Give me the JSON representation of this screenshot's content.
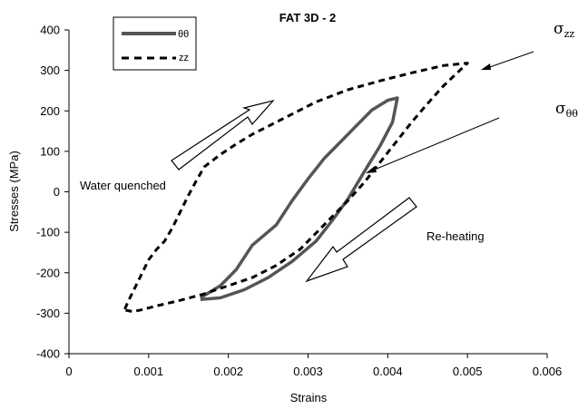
{
  "chart_data": {
    "type": "line",
    "title": "FAT 3D - 2",
    "xlabel": "Strains",
    "ylabel": "Stresses  (MPa)",
    "xlim": [
      0,
      0.006
    ],
    "ylim": [
      -400,
      400
    ],
    "xticks": [
      "0",
      "0.001",
      "0.002",
      "0.003",
      "0.004",
      "0.005",
      "0.006"
    ],
    "yticks": [
      "400",
      "300",
      "200",
      "100",
      "0",
      "-100",
      "-200",
      "-300",
      "-400"
    ],
    "grid": false,
    "legend_position": "top-left",
    "series": [
      {
        "name": "θθ",
        "style": "solid",
        "color": "#555555",
        "points": [
          [
            0.00165,
            -262
          ],
          [
            0.0019,
            -232
          ],
          [
            0.0021,
            -192
          ],
          [
            0.0023,
            -132
          ],
          [
            0.0026,
            -82
          ],
          [
            0.0028,
            -22
          ],
          [
            0.003,
            32
          ],
          [
            0.0032,
            82
          ],
          [
            0.0034,
            122
          ],
          [
            0.0036,
            162
          ],
          [
            0.0038,
            202
          ],
          [
            0.004,
            226
          ],
          [
            0.00412,
            232
          ],
          [
            0.00406,
            172
          ],
          [
            0.0039,
            112
          ],
          [
            0.0037,
            48
          ],
          [
            0.0035,
            -18
          ],
          [
            0.0033,
            -72
          ],
          [
            0.0031,
            -122
          ],
          [
            0.0028,
            -172
          ],
          [
            0.0025,
            -212
          ],
          [
            0.0022,
            -242
          ],
          [
            0.0019,
            -262
          ],
          [
            0.00165,
            -266
          ]
        ]
      },
      {
        "name": "zz",
        "style": "dashed",
        "color": "#000000",
        "points": [
          [
            0.0007,
            -290
          ],
          [
            0.00075,
            -268
          ],
          [
            0.0008,
            -248
          ],
          [
            0.0009,
            -208
          ],
          [
            0.001,
            -168
          ],
          [
            0.0011,
            -142
          ],
          [
            0.0012,
            -122
          ],
          [
            0.0013,
            -88
          ],
          [
            0.0014,
            -48
          ],
          [
            0.0015,
            -8
          ],
          [
            0.0016,
            28
          ],
          [
            0.0017,
            62
          ],
          [
            0.0019,
            92
          ],
          [
            0.0021,
            118
          ],
          [
            0.0023,
            142
          ],
          [
            0.0025,
            162
          ],
          [
            0.0028,
            192
          ],
          [
            0.0031,
            222
          ],
          [
            0.0035,
            252
          ],
          [
            0.0039,
            274
          ],
          [
            0.0043,
            294
          ],
          [
            0.0047,
            312
          ],
          [
            0.005,
            318
          ],
          [
            0.0047,
            262
          ],
          [
            0.0045,
            218
          ],
          [
            0.0043,
            172
          ],
          [
            0.0041,
            122
          ],
          [
            0.0039,
            72
          ],
          [
            0.0037,
            22
          ],
          [
            0.0035,
            -22
          ],
          [
            0.0033,
            -62
          ],
          [
            0.0031,
            -102
          ],
          [
            0.0029,
            -142
          ],
          [
            0.0026,
            -182
          ],
          [
            0.0023,
            -212
          ],
          [
            0.002,
            -232
          ],
          [
            0.0017,
            -252
          ],
          [
            0.0014,
            -268
          ],
          [
            0.0011,
            -282
          ],
          [
            0.0009,
            -292
          ],
          [
            0.0008,
            -296
          ],
          [
            0.0007,
            -292
          ]
        ]
      }
    ],
    "annotations": {
      "water_quenched": "Water quenched",
      "re_heating": "Re-heating",
      "sigma_zz": {
        "symbol": "σ",
        "sub": "zz"
      },
      "sigma_tt": {
        "symbol": "σ",
        "sub": "θθ"
      }
    }
  }
}
